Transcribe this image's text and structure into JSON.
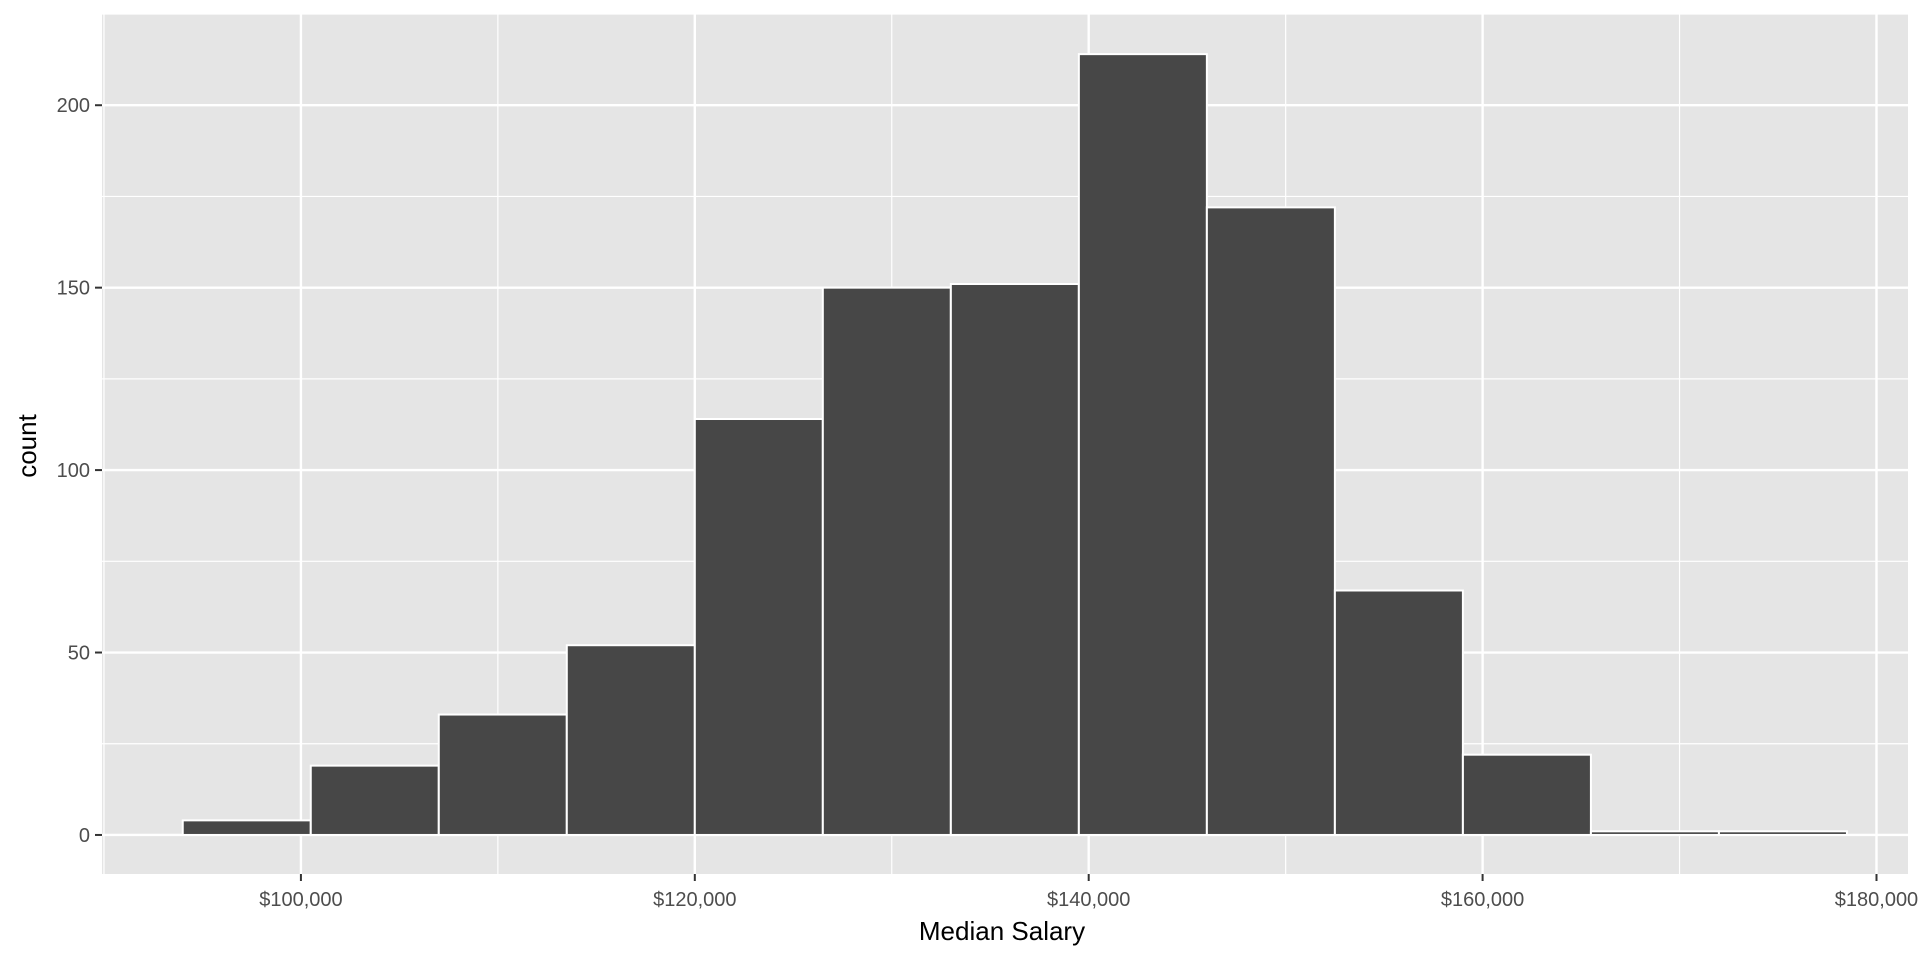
{
  "chart_data": {
    "type": "bar",
    "title": "",
    "xlabel": "Median Salary",
    "ylabel": "count",
    "bin_edges": [
      94000,
      100500,
      107000,
      113500,
      120000,
      126500,
      133000,
      139500,
      146000,
      152500,
      159000,
      165500,
      172000,
      178500
    ],
    "values": [
      4,
      19,
      33,
      52,
      114,
      150,
      151,
      214,
      172,
      67,
      22,
      1,
      1
    ],
    "xlim": [
      89900,
      181600
    ],
    "ylim": [
      -10.7,
      225
    ],
    "x_ticks": [
      100000,
      120000,
      140000,
      160000,
      180000
    ],
    "x_tick_labels": [
      "$100,000",
      "$120,000",
      "$140,000",
      "$160,000",
      "$180,000"
    ],
    "y_ticks": [
      0,
      50,
      100,
      150,
      200
    ],
    "y_tick_labels": [
      "0",
      "50",
      "100",
      "150",
      "200"
    ],
    "grid": true,
    "colors": {
      "panel_bg": "#e5e5e5",
      "grid": "#ffffff",
      "bar_fill": "#474747",
      "bar_stroke": "#ffffff",
      "tick": "#333333"
    }
  }
}
